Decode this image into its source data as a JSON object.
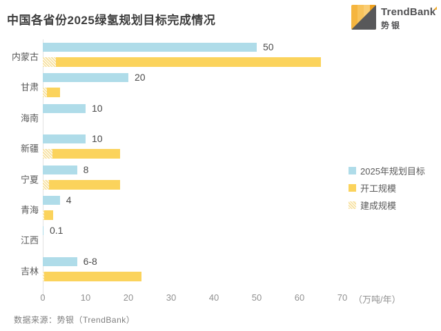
{
  "header": {
    "title": "中国各省份2025绿氢规划目标完成情况",
    "logo": {
      "brand_prefix": "TrendBan",
      "brand_k": "k",
      "brand_cn": "势银"
    }
  },
  "chart_data": {
    "type": "bar",
    "orientation": "horizontal",
    "title": "中国各省份2025绿氢规划目标完成情况",
    "unit_label": "（万吨/年）",
    "x_ticks": [
      0,
      10,
      20,
      30,
      40,
      50,
      60,
      70
    ],
    "xlim": [
      0,
      70
    ],
    "grid": false,
    "legend_position": "right",
    "legend": [
      {
        "label": "2025年规划目标",
        "color": "#AFDCE9",
        "pattern": "solid"
      },
      {
        "label": "开工规模",
        "color": "#FBD35C",
        "pattern": "solid"
      },
      {
        "label": "建成规模",
        "color": "#F6DF9E",
        "pattern": "hatch"
      }
    ],
    "rows": [
      {
        "province": "内蒙古",
        "target": 50,
        "target_label": "50",
        "started_total": 65,
        "completed": 3
      },
      {
        "province": "甘肃",
        "target": 20,
        "target_label": "20",
        "started_total": 4,
        "completed": 1
      },
      {
        "province": "海南",
        "target": 10,
        "target_label": "10",
        "started_total": 0,
        "completed": 0
      },
      {
        "province": "新疆",
        "target": 10,
        "target_label": "10",
        "started_total": 18,
        "completed": 2.2
      },
      {
        "province": "宁夏",
        "target": 8,
        "target_label": "8",
        "started_total": 18,
        "completed": 1.5
      },
      {
        "province": "青海",
        "target": 4,
        "target_label": "4",
        "started_total": 2.5,
        "completed": 0.3
      },
      {
        "province": "江西",
        "target": 0.1,
        "target_label": "0.1",
        "started_total": 0,
        "completed": 0
      },
      {
        "province": "吉林",
        "target": 8,
        "target_label": "6-8",
        "started_total": 23,
        "completed": 0.3
      }
    ]
  },
  "footer": {
    "source": "数据来源：势银（TrendBank）"
  }
}
